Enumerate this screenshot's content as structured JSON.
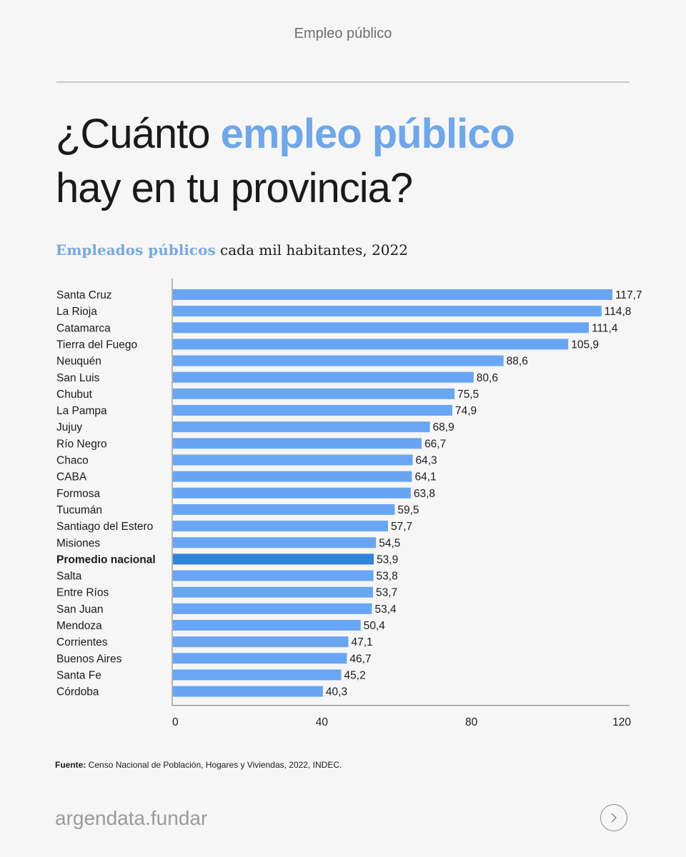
{
  "header": {
    "section_label": "Empleo público"
  },
  "title": {
    "part1": "¿Cuánto ",
    "accent": "empleo público",
    "part2": "hay en tu provincia?"
  },
  "subtitle": {
    "accent": "Empleados públicos",
    "rest": " cada mil habitantes, 2022"
  },
  "colors": {
    "bar": "#68a6f4",
    "highlight_bar": "#2f84dc",
    "accent": "#6fa7e8",
    "axis": "#8a8a8a"
  },
  "chart_data": {
    "type": "bar",
    "orientation": "horizontal",
    "title": "Empleados públicos cada mil habitantes, 2022",
    "xlabel": "",
    "ylabel": "",
    "xlim": [
      0,
      120
    ],
    "xticks": [
      0,
      40,
      80,
      120
    ],
    "grid": false,
    "highlight": "Promedio nacional",
    "categories": [
      "Santa Cruz",
      "La Rioja",
      "Catamarca",
      "Tierra del Fuego",
      "Neuquén",
      "San Luis",
      "Chubut",
      "La Pampa",
      "Jujuy",
      "Río Negro",
      "Chaco",
      "CABA",
      "Formosa",
      "Tucumán",
      "Santiago del Estero",
      "Misiones",
      "Promedio nacional",
      "Salta",
      "Entre Ríos",
      "San Juan",
      "Mendoza",
      "Corrientes",
      "Buenos Aires",
      "Santa Fe",
      "Córdoba"
    ],
    "values": [
      117.7,
      114.8,
      111.4,
      105.9,
      88.6,
      80.6,
      75.5,
      74.9,
      68.9,
      66.7,
      64.3,
      64.1,
      63.8,
      59.5,
      57.7,
      54.5,
      53.9,
      53.8,
      53.7,
      53.4,
      50.4,
      47.1,
      46.7,
      45.2,
      40.3
    ],
    "value_labels": [
      "117,7",
      "114,8",
      "111,4",
      "105,9",
      "88,6",
      "80,6",
      "75,5",
      "74,9",
      "68,9",
      "66,7",
      "64,3",
      "64,1",
      "63,8",
      "59,5",
      "57,7",
      "54,5",
      "53,9",
      "53,8",
      "53,7",
      "53,4",
      "50,4",
      "47,1",
      "46,7",
      "45,2",
      "40,3"
    ]
  },
  "footer": {
    "source_label": "Fuente:",
    "source_text": " Censo Nacional de Población, Hogares y Viviendas, 2022, INDEC.",
    "brand": "argendata.fundar",
    "next_icon": "chevron-right-icon"
  }
}
